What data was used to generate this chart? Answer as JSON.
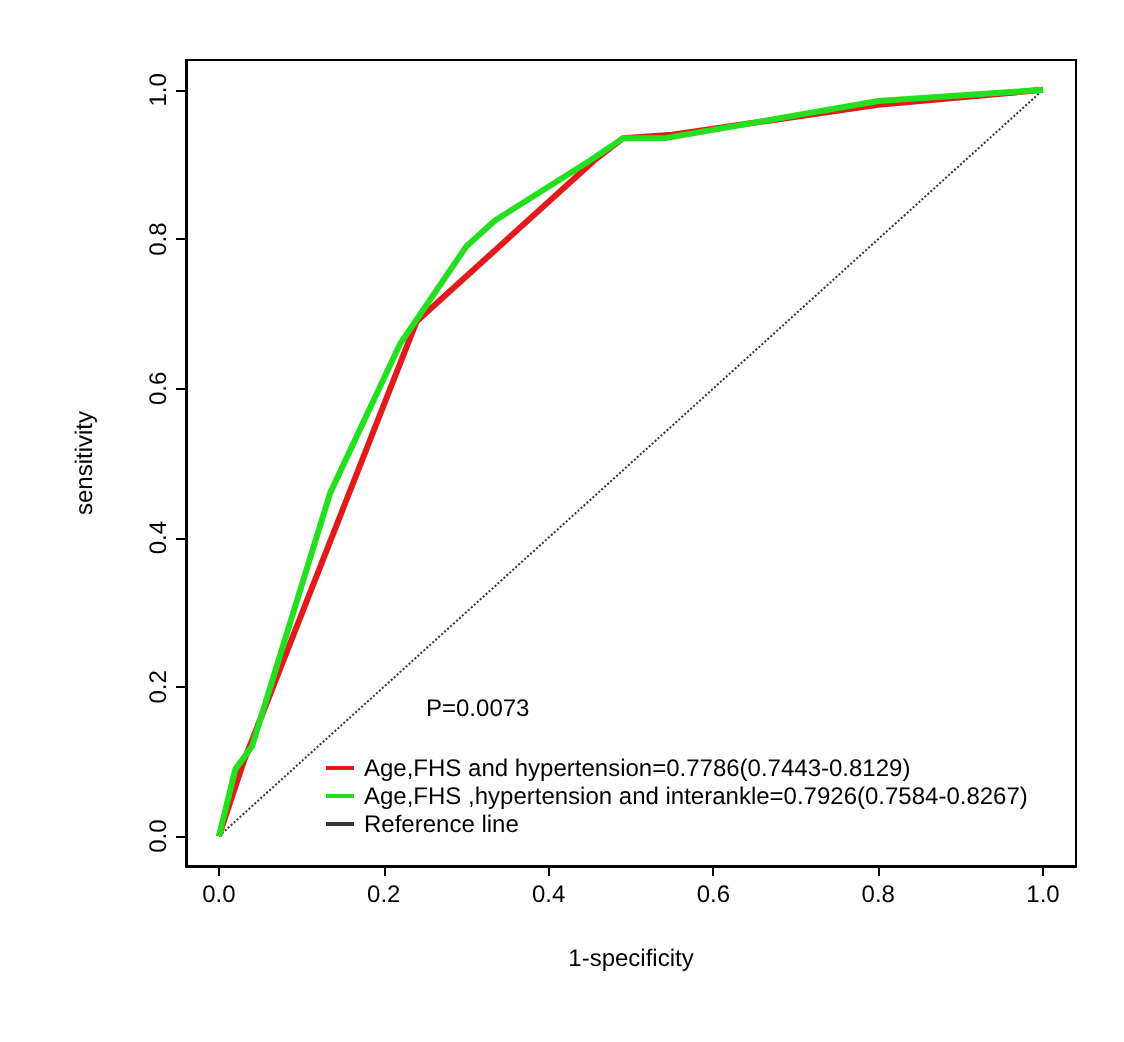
{
  "chart_data": {
    "type": "line",
    "xlabel": "1-specificity",
    "ylabel": "sensitivity",
    "xlim": [
      -0.04,
      1.04
    ],
    "ylim": [
      -0.04,
      1.04
    ],
    "xticks": [
      {
        "value": 0,
        "label": "0.0"
      },
      0.2,
      0.4,
      0.6,
      0.8,
      {
        "value": 1,
        "label": "1.0"
      }
    ],
    "yticks": [
      {
        "value": 0,
        "label": "0.0"
      },
      0.2,
      0.4,
      0.6,
      0.8,
      {
        "value": 1,
        "label": "1.0"
      }
    ],
    "grid": false,
    "legend": "bottom",
    "marker": "none",
    "annotations": [
      "P=0.0073"
    ],
    "series": [
      {
        "name": "Age,FHS and hypertension=0.7786(0.7443-0.8129)",
        "color": "#e31a1c",
        "x": [
          0,
          0.03,
          0.24,
          0.455,
          0.49,
          0.55,
          0.8,
          1
        ],
        "values": [
          0,
          0.1,
          0.69,
          0.905,
          0.935,
          0.94,
          0.98,
          1
        ]
      },
      {
        "name": "Age,FHS ,hypertension and interankle=0.7926(0.7584-0.8267)",
        "color": "#22e01e",
        "x": [
          0,
          0.02,
          0.04,
          0.135,
          0.22,
          0.3,
          0.335,
          0.45,
          0.49,
          0.54,
          0.8,
          1
        ],
        "values": [
          0,
          0.09,
          0.12,
          0.46,
          0.66,
          0.79,
          0.825,
          0.905,
          0.935,
          0.935,
          0.985,
          1
        ]
      },
      {
        "name": "Reference line",
        "color": "#333333",
        "line_style": "dotted",
        "x": [
          0,
          1
        ],
        "values": [
          0,
          1
        ]
      }
    ]
  }
}
